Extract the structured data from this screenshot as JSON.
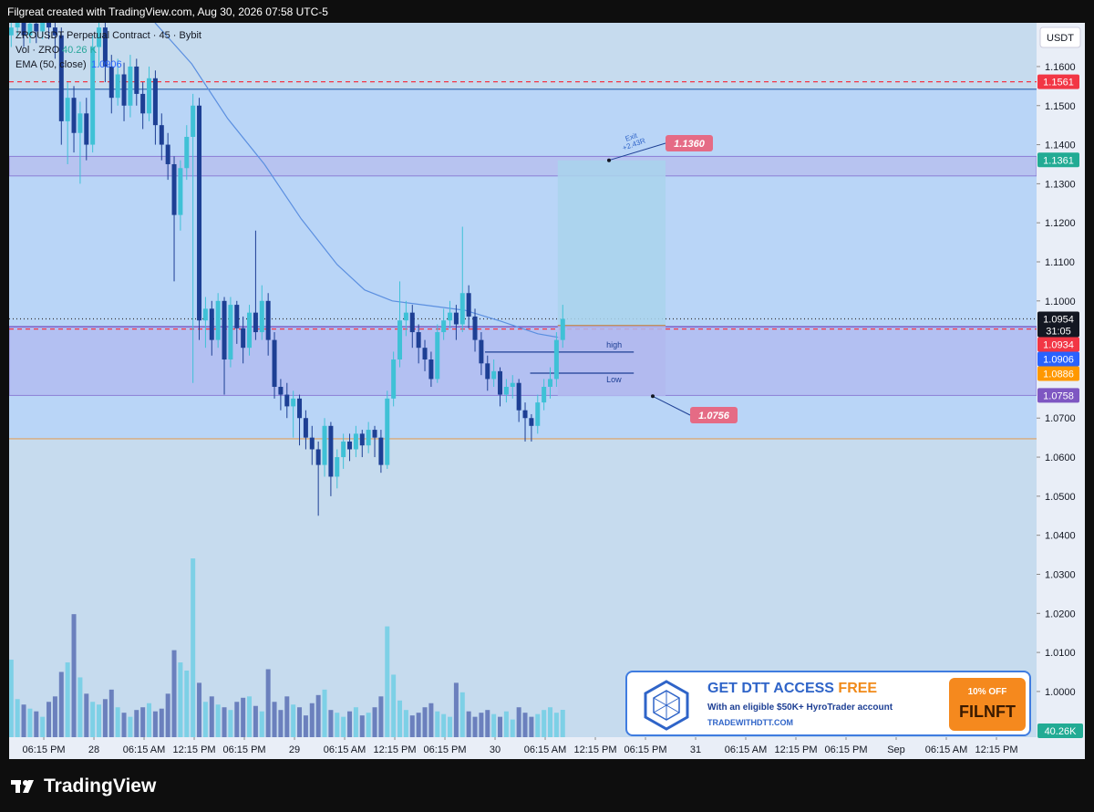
{
  "header": "Filgreat created with TradingView.com, Aug 30, 2026 07:58 UTC-5",
  "chart_data": {
    "type": "candlestick",
    "title": "ZROUSDT Perpetual Contract · 45 · Bybit",
    "currency": "USDT",
    "up_color": "#3fc1d6",
    "down_color": "#1d3f94",
    "x": [
      -3.9,
      -3.15,
      -2.4,
      -1.65,
      -0.9,
      -0.15,
      0.6,
      1.35,
      2.1,
      2.85,
      3.6,
      4.35,
      5.1,
      5.85,
      6.6,
      7.35,
      8.1,
      8.85,
      9.6,
      10.35,
      11.1,
      11.85,
      12.6,
      13.35,
      14.1,
      14.85,
      15.6,
      16.35,
      17.1,
      17.85,
      18.6,
      19.35,
      20.1,
      20.85,
      21.6,
      22.35,
      23.1,
      23.85,
      24.6,
      25.35,
      26.1,
      26.85,
      27.6,
      28.35,
      29.1,
      29.85,
      30.6,
      31.35,
      32.1,
      32.85,
      33.6,
      34.35,
      35.1,
      35.85,
      36.6,
      37.35,
      38.1,
      38.85,
      39.6,
      40.35,
      41.1,
      41.85,
      42.6,
      43.35,
      44.1,
      44.85,
      45.6,
      46.35,
      47.1,
      47.85,
      48.6,
      49.35,
      50.1,
      50.85,
      51.6,
      52.35,
      53.1,
      53.85,
      54.6,
      55.35,
      56.1,
      56.85,
      57.6,
      58.35,
      59.1,
      59.85,
      60.6,
      61.35,
      62.1
    ],
    "ohlc": [
      [
        1.168,
        1.174,
        1.165,
        1.17
      ],
      [
        1.17,
        1.175,
        1.168,
        1.172
      ],
      [
        1.172,
        1.174,
        1.165,
        1.168
      ],
      [
        1.168,
        1.174,
        1.166,
        1.171
      ],
      [
        1.171,
        1.173,
        1.166,
        1.169
      ],
      [
        1.169,
        1.176,
        1.167,
        1.173
      ],
      [
        1.173,
        1.175,
        1.167,
        1.17
      ],
      [
        1.17,
        1.172,
        1.162,
        1.168
      ],
      [
        1.168,
        1.17,
        1.14,
        1.146
      ],
      [
        1.146,
        1.156,
        1.135,
        1.152
      ],
      [
        1.152,
        1.155,
        1.138,
        1.143
      ],
      [
        1.143,
        1.151,
        1.13,
        1.148
      ],
      [
        1.148,
        1.152,
        1.136,
        1.14
      ],
      [
        1.14,
        1.168,
        1.138,
        1.165
      ],
      [
        1.165,
        1.174,
        1.16,
        1.17
      ],
      [
        1.17,
        1.172,
        1.156,
        1.16
      ],
      [
        1.16,
        1.163,
        1.148,
        1.152
      ],
      [
        1.152,
        1.162,
        1.15,
        1.158
      ],
      [
        1.158,
        1.161,
        1.146,
        1.15
      ],
      [
        1.15,
        1.163,
        1.147,
        1.16
      ],
      [
        1.16,
        1.162,
        1.15,
        1.153
      ],
      [
        1.153,
        1.156,
        1.144,
        1.148
      ],
      [
        1.148,
        1.16,
        1.146,
        1.157
      ],
      [
        1.157,
        1.159,
        1.14,
        1.145
      ],
      [
        1.145,
        1.148,
        1.136,
        1.14
      ],
      [
        1.14,
        1.143,
        1.131,
        1.135
      ],
      [
        1.135,
        1.137,
        1.105,
        1.122
      ],
      [
        1.122,
        1.136,
        1.118,
        1.134
      ],
      [
        1.134,
        1.145,
        1.131,
        1.142
      ],
      [
        1.142,
        1.153,
        1.079,
        1.15
      ],
      [
        1.15,
        1.152,
        1.09,
        1.095
      ],
      [
        1.095,
        1.101,
        1.088,
        1.098
      ],
      [
        1.098,
        1.1,
        1.086,
        1.09
      ],
      [
        1.09,
        1.102,
        1.088,
        1.1
      ],
      [
        1.1,
        1.101,
        1.076,
        1.085
      ],
      [
        1.085,
        1.101,
        1.083,
        1.099
      ],
      [
        1.099,
        1.1,
        1.089,
        1.093
      ],
      [
        1.093,
        1.096,
        1.084,
        1.088
      ],
      [
        1.088,
        1.099,
        1.086,
        1.097
      ],
      [
        1.097,
        1.118,
        1.09,
        1.092
      ],
      [
        1.092,
        1.104,
        1.09,
        1.1
      ],
      [
        1.1,
        1.102,
        1.086,
        1.09
      ],
      [
        1.09,
        1.092,
        1.075,
        1.078
      ],
      [
        1.078,
        1.08,
        1.072,
        1.076
      ],
      [
        1.076,
        1.079,
        1.07,
        1.073
      ],
      [
        1.073,
        1.077,
        1.065,
        1.075
      ],
      [
        1.075,
        1.076,
        1.063,
        1.07
      ],
      [
        1.07,
        1.072,
        1.062,
        1.065
      ],
      [
        1.065,
        1.068,
        1.058,
        1.062
      ],
      [
        1.062,
        1.064,
        1.045,
        1.058
      ],
      [
        1.058,
        1.07,
        1.055,
        1.068
      ],
      [
        1.068,
        1.069,
        1.05,
        1.055
      ],
      [
        1.055,
        1.062,
        1.052,
        1.06
      ],
      [
        1.06,
        1.066,
        1.057,
        1.064
      ],
      [
        1.064,
        1.066,
        1.059,
        1.062
      ],
      [
        1.062,
        1.068,
        1.06,
        1.066
      ],
      [
        1.066,
        1.067,
        1.06,
        1.063
      ],
      [
        1.063,
        1.069,
        1.061,
        1.067
      ],
      [
        1.067,
        1.068,
        1.06,
        1.065
      ],
      [
        1.065,
        1.067,
        1.056,
        1.058
      ],
      [
        1.058,
        1.077,
        1.057,
        1.075
      ],
      [
        1.075,
        1.087,
        1.073,
        1.085
      ],
      [
        1.085,
        1.105,
        1.083,
        1.095
      ],
      [
        1.095,
        1.1,
        1.091,
        1.097
      ],
      [
        1.097,
        1.099,
        1.088,
        1.092
      ],
      [
        1.092,
        1.094,
        1.084,
        1.088
      ],
      [
        1.088,
        1.09,
        1.082,
        1.085
      ],
      [
        1.085,
        1.087,
        1.078,
        1.08
      ],
      [
        1.08,
        1.094,
        1.079,
        1.092
      ],
      [
        1.092,
        1.098,
        1.09,
        1.095
      ],
      [
        1.095,
        1.1,
        1.093,
        1.097
      ],
      [
        1.097,
        1.099,
        1.09,
        1.094
      ],
      [
        1.094,
        1.119,
        1.092,
        1.102
      ],
      [
        1.102,
        1.104,
        1.093,
        1.096
      ],
      [
        1.096,
        1.098,
        1.087,
        1.09
      ],
      [
        1.09,
        1.092,
        1.081,
        1.084
      ],
      [
        1.084,
        1.086,
        1.077,
        1.08
      ],
      [
        1.08,
        1.085,
        1.078,
        1.082
      ],
      [
        1.082,
        1.083,
        1.073,
        1.076
      ],
      [
        1.076,
        1.08,
        1.074,
        1.078
      ],
      [
        1.078,
        1.081,
        1.075,
        1.079
      ],
      [
        1.079,
        1.08,
        1.069,
        1.072
      ],
      [
        1.072,
        1.074,
        1.064,
        1.07
      ],
      [
        1.07,
        1.071,
        1.064,
        1.068
      ],
      [
        1.068,
        1.076,
        1.066,
        1.074
      ],
      [
        1.074,
        1.08,
        1.072,
        1.078
      ],
      [
        1.078,
        1.083,
        1.075,
        1.08
      ],
      [
        1.08,
        1.092,
        1.078,
        1.09
      ],
      [
        1.09,
        1.099,
        1.088,
        1.0954
      ]
    ],
    "volume": {
      "name": "Vol · ZRO",
      "legend_value": "40.26 K",
      "axis_tag": "40.26K",
      "up_color": "#7dd0e6",
      "down_color": "#6b80bd",
      "ylim": [
        0,
        1051
      ],
      "values": [
        114,
        56,
        48,
        42,
        38,
        30,
        52,
        60,
        96,
        110,
        181,
        88,
        64,
        52,
        48,
        56,
        70,
        44,
        36,
        30,
        40,
        44,
        50,
        38,
        42,
        64,
        128,
        110,
        98,
        263,
        80,
        52,
        60,
        48,
        44,
        40,
        52,
        58,
        60,
        46,
        38,
        100,
        52,
        40,
        60,
        48,
        44,
        32,
        50,
        62,
        70,
        40,
        36,
        30,
        38,
        44,
        32,
        36,
        44,
        60,
        163,
        92,
        54,
        40,
        32,
        36,
        44,
        50,
        38,
        34,
        30,
        80,
        66,
        38,
        30,
        36,
        40,
        34,
        30,
        38,
        26,
        44,
        36,
        30,
        34,
        40,
        44,
        36,
        40.26
      ]
    },
    "ema": {
      "name": "EMA (50, close)",
      "legend_value": 1.0906,
      "color": "#5b8fe0",
      "x": [
        13.3,
        17.7,
        22.0,
        26.4,
        30.8,
        35.1,
        38.4,
        41.7,
        46.0,
        50.4,
        54.7,
        59.1,
        61.8
      ],
      "values": [
        1.1712,
        1.1607,
        1.1467,
        1.135,
        1.121,
        1.1093,
        1.1028,
        1.1,
        1.0988,
        1.0976,
        1.0948,
        1.0916,
        1.0906
      ]
    },
    "xlim": [
      -4.15,
      118.8
    ],
    "xticks": [
      {
        "value": 0,
        "label": "06:15 PM"
      },
      {
        "value": 6,
        "label": "28"
      },
      {
        "value": 12,
        "label": "06:15 AM"
      },
      {
        "value": 18,
        "label": "12:15 PM"
      },
      {
        "value": 24,
        "label": "06:15 PM"
      },
      {
        "value": 30,
        "label": "29"
      },
      {
        "value": 36,
        "label": "06:15 AM"
      },
      {
        "value": 42,
        "label": "12:15 PM"
      },
      {
        "value": 48,
        "label": "06:15 PM"
      },
      {
        "value": 54,
        "label": "30"
      },
      {
        "value": 60,
        "label": "06:15 AM"
      },
      {
        "value": 66,
        "label": "12:15 PM"
      },
      {
        "value": 72,
        "label": "06:15 PM"
      },
      {
        "value": 78,
        "label": "31"
      },
      {
        "value": 84,
        "label": "06:15 AM"
      },
      {
        "value": 90,
        "label": "12:15 PM"
      },
      {
        "value": 96,
        "label": "06:15 PM"
      },
      {
        "value": 102,
        "label": "Sep"
      },
      {
        "value": 108,
        "label": "06:15 AM"
      },
      {
        "value": 114,
        "label": "12:15 PM"
      }
    ],
    "ylim": [
      0.9883,
      1.1712
    ],
    "yticks": [
      {
        "value": 1.16,
        "label": "1.1600"
      },
      {
        "value": 1.15,
        "label": "1.1500"
      },
      {
        "value": 1.14,
        "label": "1.1400"
      },
      {
        "value": 1.13,
        "label": "1.1300"
      },
      {
        "value": 1.12,
        "label": "1.1200"
      },
      {
        "value": 1.11,
        "label": "1.1100"
      },
      {
        "value": 1.1,
        "label": "1.1000"
      },
      {
        "value": 1.07,
        "label": "1.0700"
      },
      {
        "value": 1.06,
        "label": "1.0600"
      },
      {
        "value": 1.05,
        "label": "1.0500"
      },
      {
        "value": 1.04,
        "label": "1.0400"
      },
      {
        "value": 1.03,
        "label": "1.0300"
      },
      {
        "value": 1.02,
        "label": "1.0200"
      },
      {
        "value": 1.01,
        "label": "1.0100"
      },
      {
        "value": 1,
        "label": "1.0000"
      }
    ],
    "zones": [
      {
        "from": 1.1542,
        "to": 1.0647,
        "color": "#b9d5f7"
      },
      {
        "from": 1.137,
        "to": 1.132,
        "color": "#b7c3f0",
        "border": "#8c7fd6"
      },
      {
        "from": 1.0934,
        "to": 1.0758,
        "color": "#b3c0f2",
        "border": "#8c7fd6"
      }
    ],
    "levels": [
      {
        "value": 1.1561,
        "color": "#f23645",
        "style": "dashed"
      },
      {
        "value": 1.1542,
        "color": "#3b6fb5",
        "style": "solid"
      },
      {
        "value": 1.0954,
        "color": "#333333",
        "style": "dotted"
      },
      {
        "value": 1.0934,
        "color": "#6a3fb8",
        "style": "solid"
      },
      {
        "value": 1.0928,
        "color": "#f23645",
        "style": "dashed"
      },
      {
        "value": 1.0647,
        "color": "#e0a060",
        "style": "solid"
      }
    ],
    "price_tags": [
      {
        "value": 1.1561,
        "color": "#f23645"
      },
      {
        "value": 1.1361,
        "color": "#22ab94"
      },
      {
        "value": 1.0954,
        "color": "#131722",
        "countdown": "31:05"
      },
      {
        "value": 1.0934,
        "color": "#f23645"
      },
      {
        "value": 1.0906,
        "color": "#2962ff"
      },
      {
        "value": 1.0886,
        "color": "#ff9800"
      },
      {
        "value": 1.0758,
        "color": "#7e57c2"
      }
    ],
    "position": {
      "x_from": 61.5,
      "x_to": 74.4,
      "entry": 1.0937,
      "target": {
        "value": 1.136,
        "label": "1.1360"
      },
      "stop": 1.0756,
      "exit_label": "Exit",
      "r_label": "+2.43R"
    },
    "marks": [
      {
        "label": "high",
        "value": 1.0869,
        "x_from": 52.8,
        "x_to": 70.6
      },
      {
        "label": "Low",
        "value": 1.0815,
        "x_from": 58.2,
        "x_to": 70.6
      }
    ]
  },
  "ad": {
    "title": "GET DTT ACCESS",
    "title_accent": "FREE",
    "text": "With an eligible $50K+ HyroTrader account",
    "url": "TRADEWITHDTT.COM",
    "offer": "10% OFF",
    "code": "FILNFT"
  },
  "footer": "TradingView"
}
